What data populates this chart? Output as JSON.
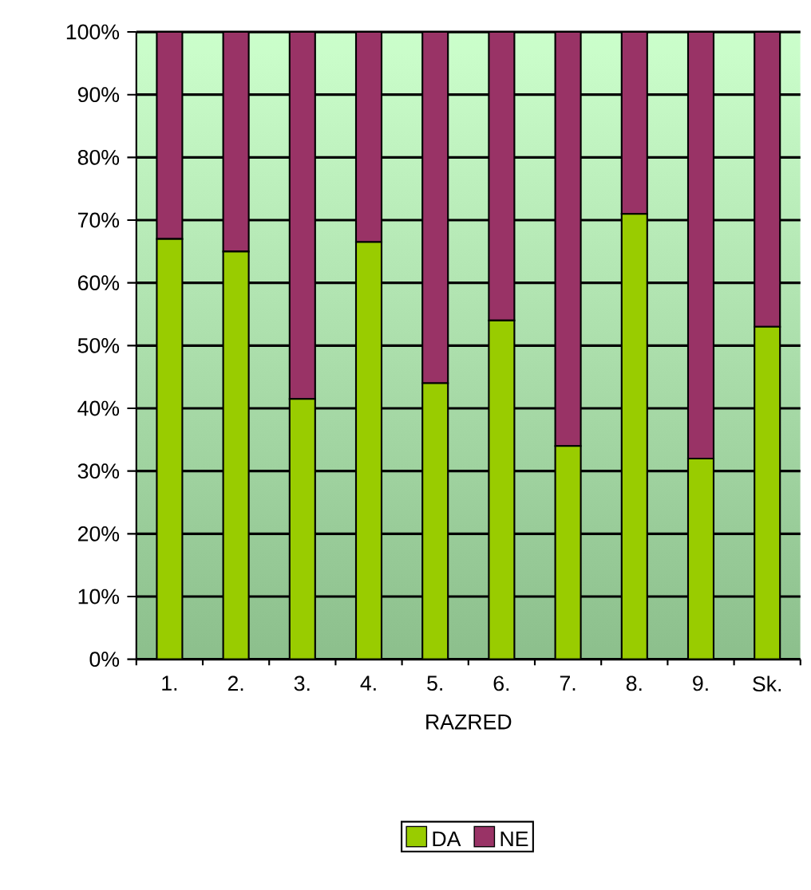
{
  "chart_data": {
    "type": "bar",
    "stacked": true,
    "xlabel": "RAZRED",
    "categories": [
      "1.",
      "2.",
      "3.",
      "4.",
      "5.",
      "6.",
      "7.",
      "8.",
      "9.",
      "Sk."
    ],
    "series": [
      {
        "name": "DA",
        "color": "#99cc00",
        "values": [
          67,
          65,
          41.5,
          66.5,
          44,
          54,
          34,
          71,
          32,
          53
        ]
      },
      {
        "name": "NE",
        "color": "#993366",
        "values": [
          33,
          35,
          58.5,
          33.5,
          56,
          46,
          66,
          29,
          68,
          47
        ]
      }
    ],
    "ylim": [
      0,
      100
    ],
    "yticks": [
      {
        "value": 0,
        "label": "0%"
      },
      {
        "value": 10,
        "label": "10%"
      },
      {
        "value": 20,
        "label": "20%"
      },
      {
        "value": 30,
        "label": "30%"
      },
      {
        "value": 40,
        "label": "40%"
      },
      {
        "value": 50,
        "label": "50%"
      },
      {
        "value": 60,
        "label": "60%"
      },
      {
        "value": 70,
        "label": "70%"
      },
      {
        "value": 80,
        "label": "80%"
      },
      {
        "value": 90,
        "label": "90%"
      },
      {
        "value": 100,
        "label": "100%"
      }
    ],
    "grid": "y",
    "legend": "bottom"
  }
}
